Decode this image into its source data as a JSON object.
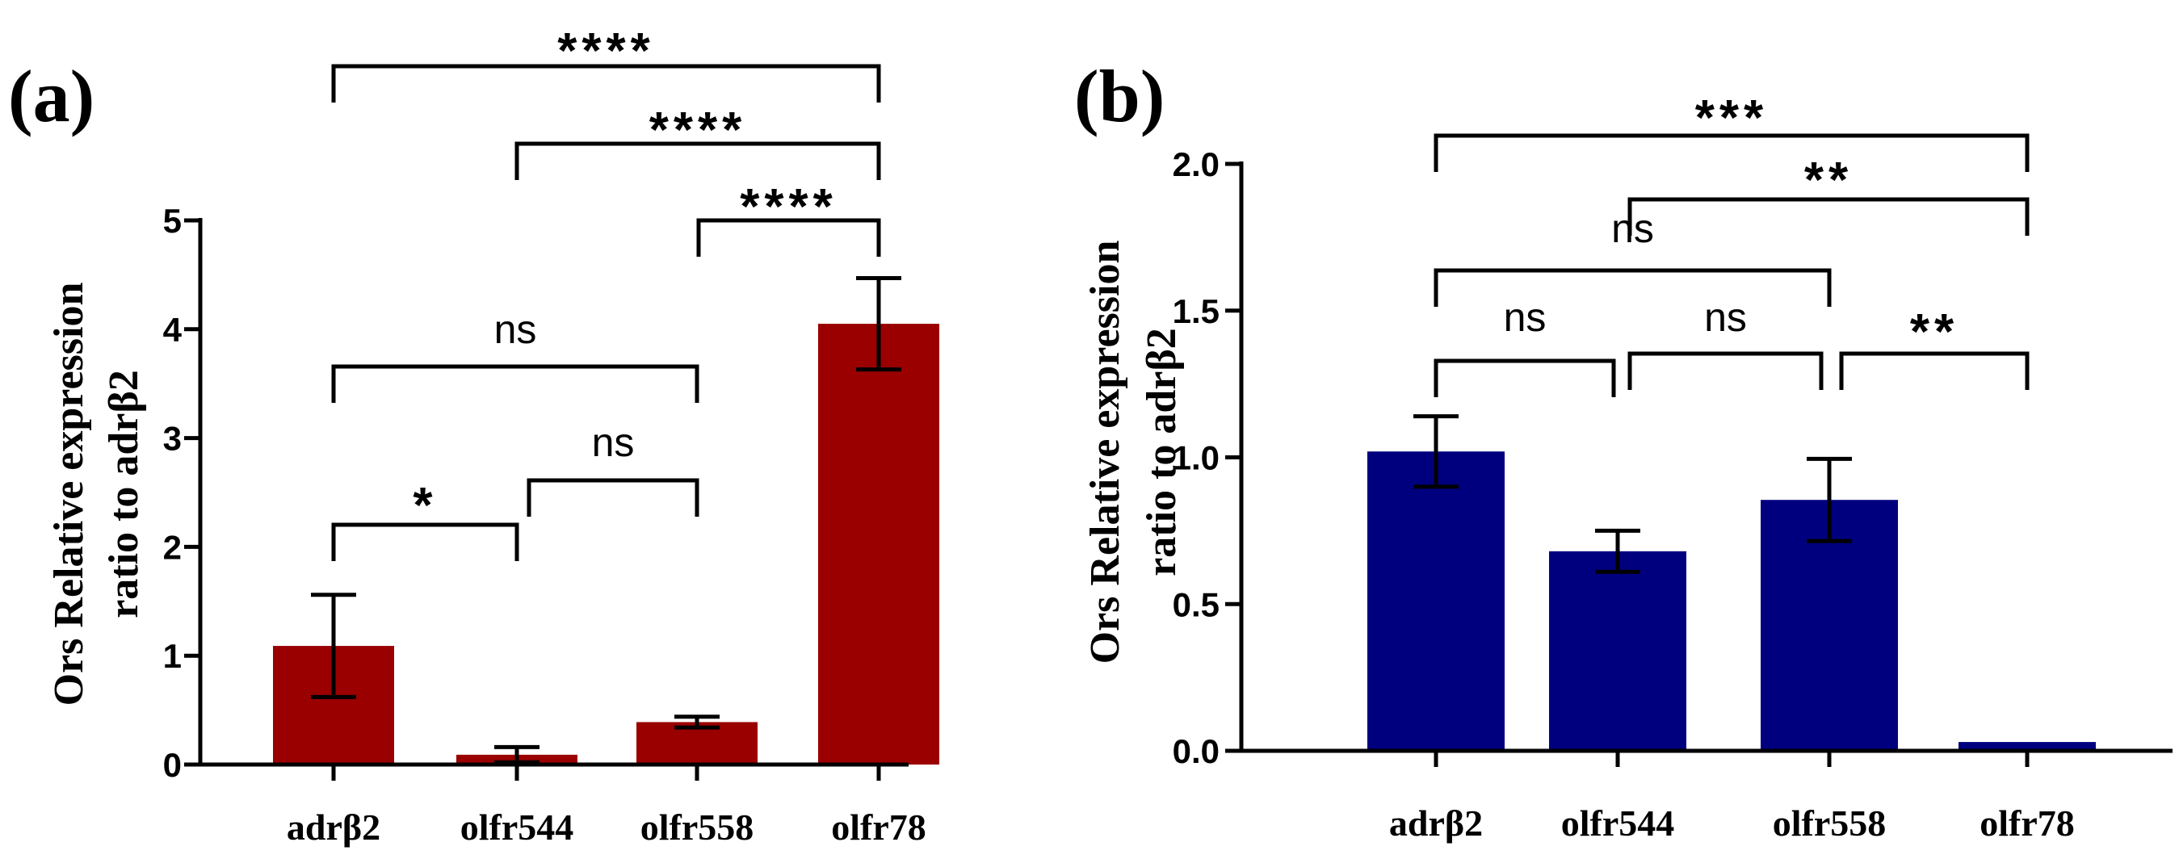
{
  "chart_data": [
    {
      "type": "bar",
      "panel_label": "(a)",
      "ylabel_lines": [
        "Ors Relative expression",
        "ratio to adrβ2"
      ],
      "categories": [
        "adrβ2",
        "olfr544",
        "olfr558",
        "olfr78"
      ],
      "values": [
        1.09,
        0.09,
        0.39,
        4.05
      ],
      "errors": [
        0.47,
        0.07,
        0.05,
        0.42
      ],
      "ylim": [
        0,
        5
      ],
      "yticks": [
        "0",
        "1",
        "2",
        "3",
        "4",
        "5"
      ],
      "bar_color": "#9a0000",
      "comparisons": [
        {
          "from": 0,
          "to": 1,
          "label": "*"
        },
        {
          "from": 1,
          "to": 2,
          "label": "ns"
        },
        {
          "from": 0,
          "to": 2,
          "label": "ns"
        },
        {
          "from": 2,
          "to": 3,
          "label": "****"
        },
        {
          "from": 1,
          "to": 3,
          "label": "****"
        },
        {
          "from": 0,
          "to": 3,
          "label": "****"
        }
      ]
    },
    {
      "type": "bar",
      "panel_label": "(b)",
      "ylabel_lines": [
        "Ors Relative expression",
        "ratio to adrβ2"
      ],
      "categories": [
        "adrβ2",
        "olfr544",
        "olfr558",
        "olfr78"
      ],
      "values": [
        1.02,
        0.68,
        0.855,
        0.03
      ],
      "errors": [
        0.12,
        0.07,
        0.14,
        0.0
      ],
      "ylim": [
        0,
        2.0
      ],
      "yticks": [
        "0.0",
        "0.5",
        "1.0",
        "1.5",
        "2.0"
      ],
      "bar_color": "#00007f",
      "comparisons": [
        {
          "from": 0,
          "to": 1,
          "label": "ns"
        },
        {
          "from": 1,
          "to": 2,
          "label": "ns"
        },
        {
          "from": 2,
          "to": 3,
          "label": "**"
        },
        {
          "from": 0,
          "to": 2,
          "label": "ns"
        },
        {
          "from": 1,
          "to": 3,
          "label": "**"
        },
        {
          "from": 0,
          "to": 3,
          "label": "***"
        }
      ]
    }
  ]
}
